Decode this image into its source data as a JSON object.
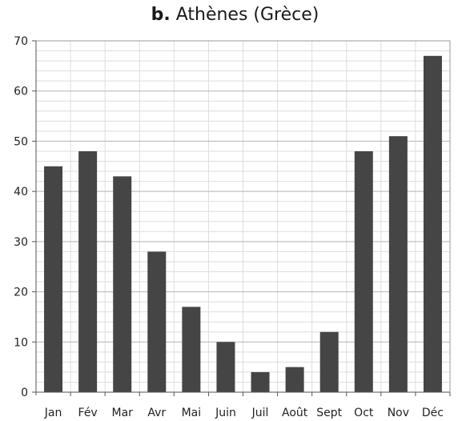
{
  "chart_data": {
    "type": "bar",
    "title_prefix": "b.",
    "title": "Athènes (Grèce)",
    "xlabel": "",
    "ylabel": "",
    "categories": [
      "Jan",
      "Fév",
      "Mar",
      "Avr",
      "Mai",
      "Juin",
      "Juil",
      "Août",
      "Sept",
      "Oct",
      "Nov",
      "Déc"
    ],
    "values": [
      45,
      48,
      43,
      28,
      17,
      10,
      4,
      5,
      12,
      48,
      51,
      67
    ],
    "ylim": [
      0,
      70
    ],
    "yticks": [
      0,
      10,
      20,
      30,
      40,
      50,
      60,
      70
    ],
    "minor_grid_step": 2,
    "grid": true,
    "bar_color": "#454545",
    "major_grid_color": "#b5b5b5",
    "minor_grid_color": "#dedede"
  }
}
